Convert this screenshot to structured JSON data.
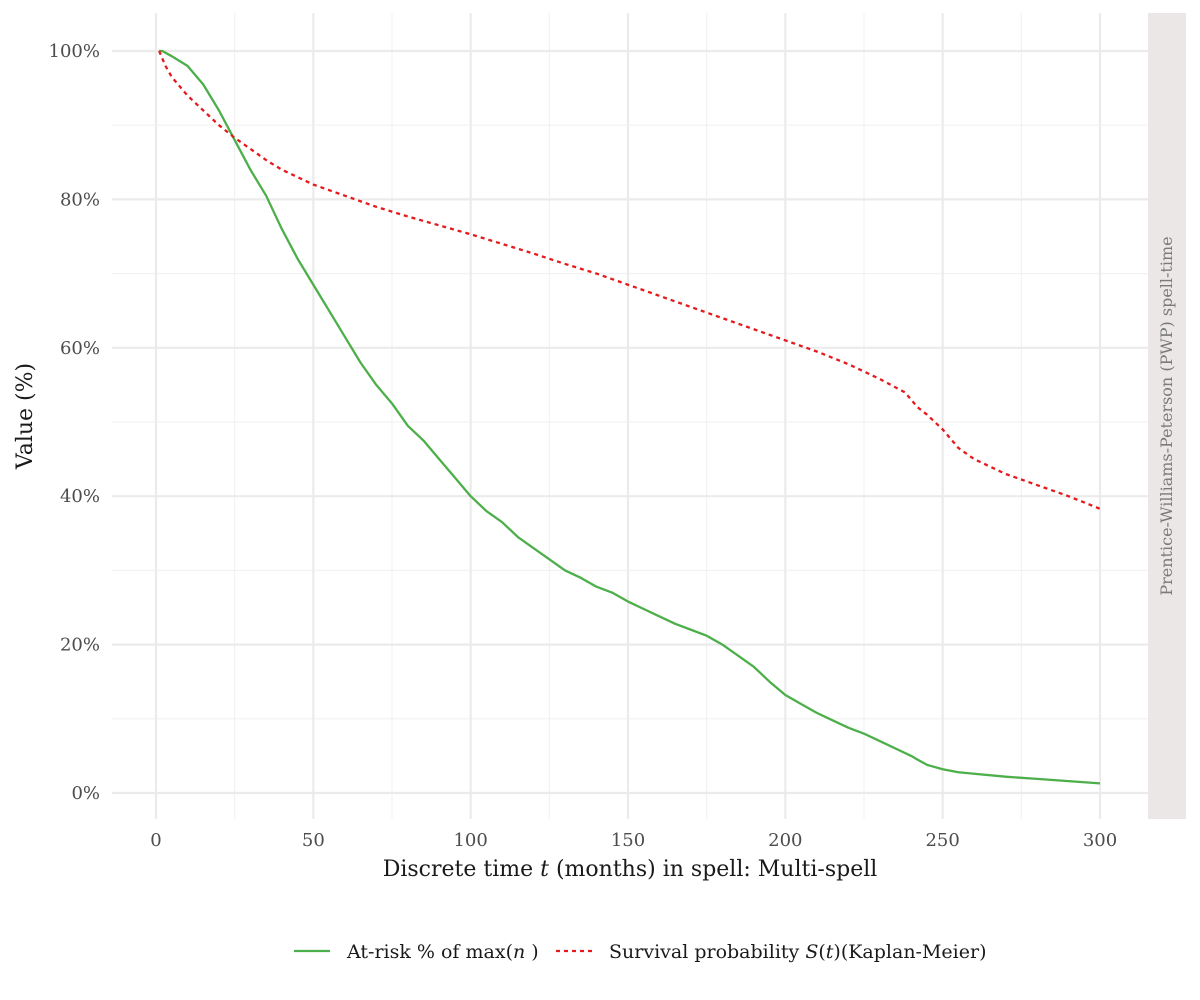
{
  "chart_data": {
    "type": "line",
    "xlabel_parts": {
      "pre": "Discrete time ",
      "var": "t",
      "post": " (months) in spell: Multi-spell"
    },
    "ylabel": "Value (%)",
    "facet_label": "Prentice-Williams-Peterson (PWP) spell-time",
    "xlim": [
      0,
      300
    ],
    "ylim": [
      0,
      100
    ],
    "x_ticks": [
      0,
      50,
      100,
      150,
      200,
      250,
      300
    ],
    "y_ticks": [
      0,
      20,
      40,
      60,
      80,
      100
    ],
    "y_tick_labels": [
      "0%",
      "20%",
      "40%",
      "60%",
      "80%",
      "100%"
    ],
    "grid": true,
    "legend_position": "bottom",
    "series": [
      {
        "key": "atrisk",
        "legend": {
          "pre": "At-risk % of max(",
          "var": "n",
          "post": " )"
        },
        "color": "#4daf4a",
        "line_style": "solid",
        "x": [
          1,
          2,
          5,
          10,
          15,
          20,
          25,
          30,
          35,
          40,
          45,
          50,
          55,
          60,
          65,
          70,
          75,
          80,
          85,
          90,
          95,
          100,
          105,
          110,
          115,
          120,
          125,
          130,
          135,
          140,
          145,
          150,
          155,
          160,
          165,
          170,
          175,
          180,
          185,
          190,
          195,
          200,
          205,
          210,
          215,
          220,
          225,
          230,
          235,
          240,
          242,
          245,
          250,
          255,
          260,
          270,
          280,
          290,
          300
        ],
        "y": [
          100,
          100,
          99.3,
          98,
          95.5,
          92,
          88,
          84,
          80.5,
          76,
          72,
          68.5,
          65,
          61.5,
          58,
          55,
          52.5,
          49.5,
          47.5,
          45,
          42.5,
          40,
          38,
          36.5,
          34.5,
          33,
          31.5,
          30,
          29,
          27.8,
          27,
          25.8,
          24.8,
          23.8,
          22.8,
          22,
          21.2,
          20,
          18.5,
          17,
          15,
          13.2,
          12,
          10.8,
          9.8,
          8.8,
          8,
          7,
          6,
          5,
          4.5,
          3.8,
          3.2,
          2.8,
          2.6,
          2.2,
          1.9,
          1.6,
          1.3
        ]
      },
      {
        "key": "survival",
        "legend": {
          "pre": "Survival probability ",
          "var": "S",
          "mid": "(",
          "var2": "t",
          "post": ")(Kaplan-Meier)"
        },
        "color": "#e41a1c",
        "line_style": "dashed",
        "x": [
          1,
          3,
          5,
          10,
          15,
          20,
          25,
          30,
          35,
          40,
          50,
          60,
          70,
          80,
          90,
          100,
          110,
          120,
          130,
          140,
          150,
          160,
          170,
          180,
          190,
          200,
          210,
          220,
          230,
          238,
          242,
          245,
          250,
          255,
          260,
          270,
          280,
          290,
          300
        ],
        "y": [
          100,
          98,
          96.5,
          94,
          92,
          90,
          88.3,
          86.8,
          85.3,
          84,
          82,
          80.5,
          79,
          77.7,
          76.5,
          75.3,
          74,
          72.7,
          71.3,
          70,
          68.5,
          67,
          65.5,
          64,
          62.5,
          61,
          59.5,
          57.8,
          55.8,
          54,
          52,
          51,
          49,
          46.5,
          45,
          43,
          41.5,
          40,
          38.3
        ]
      }
    ]
  }
}
